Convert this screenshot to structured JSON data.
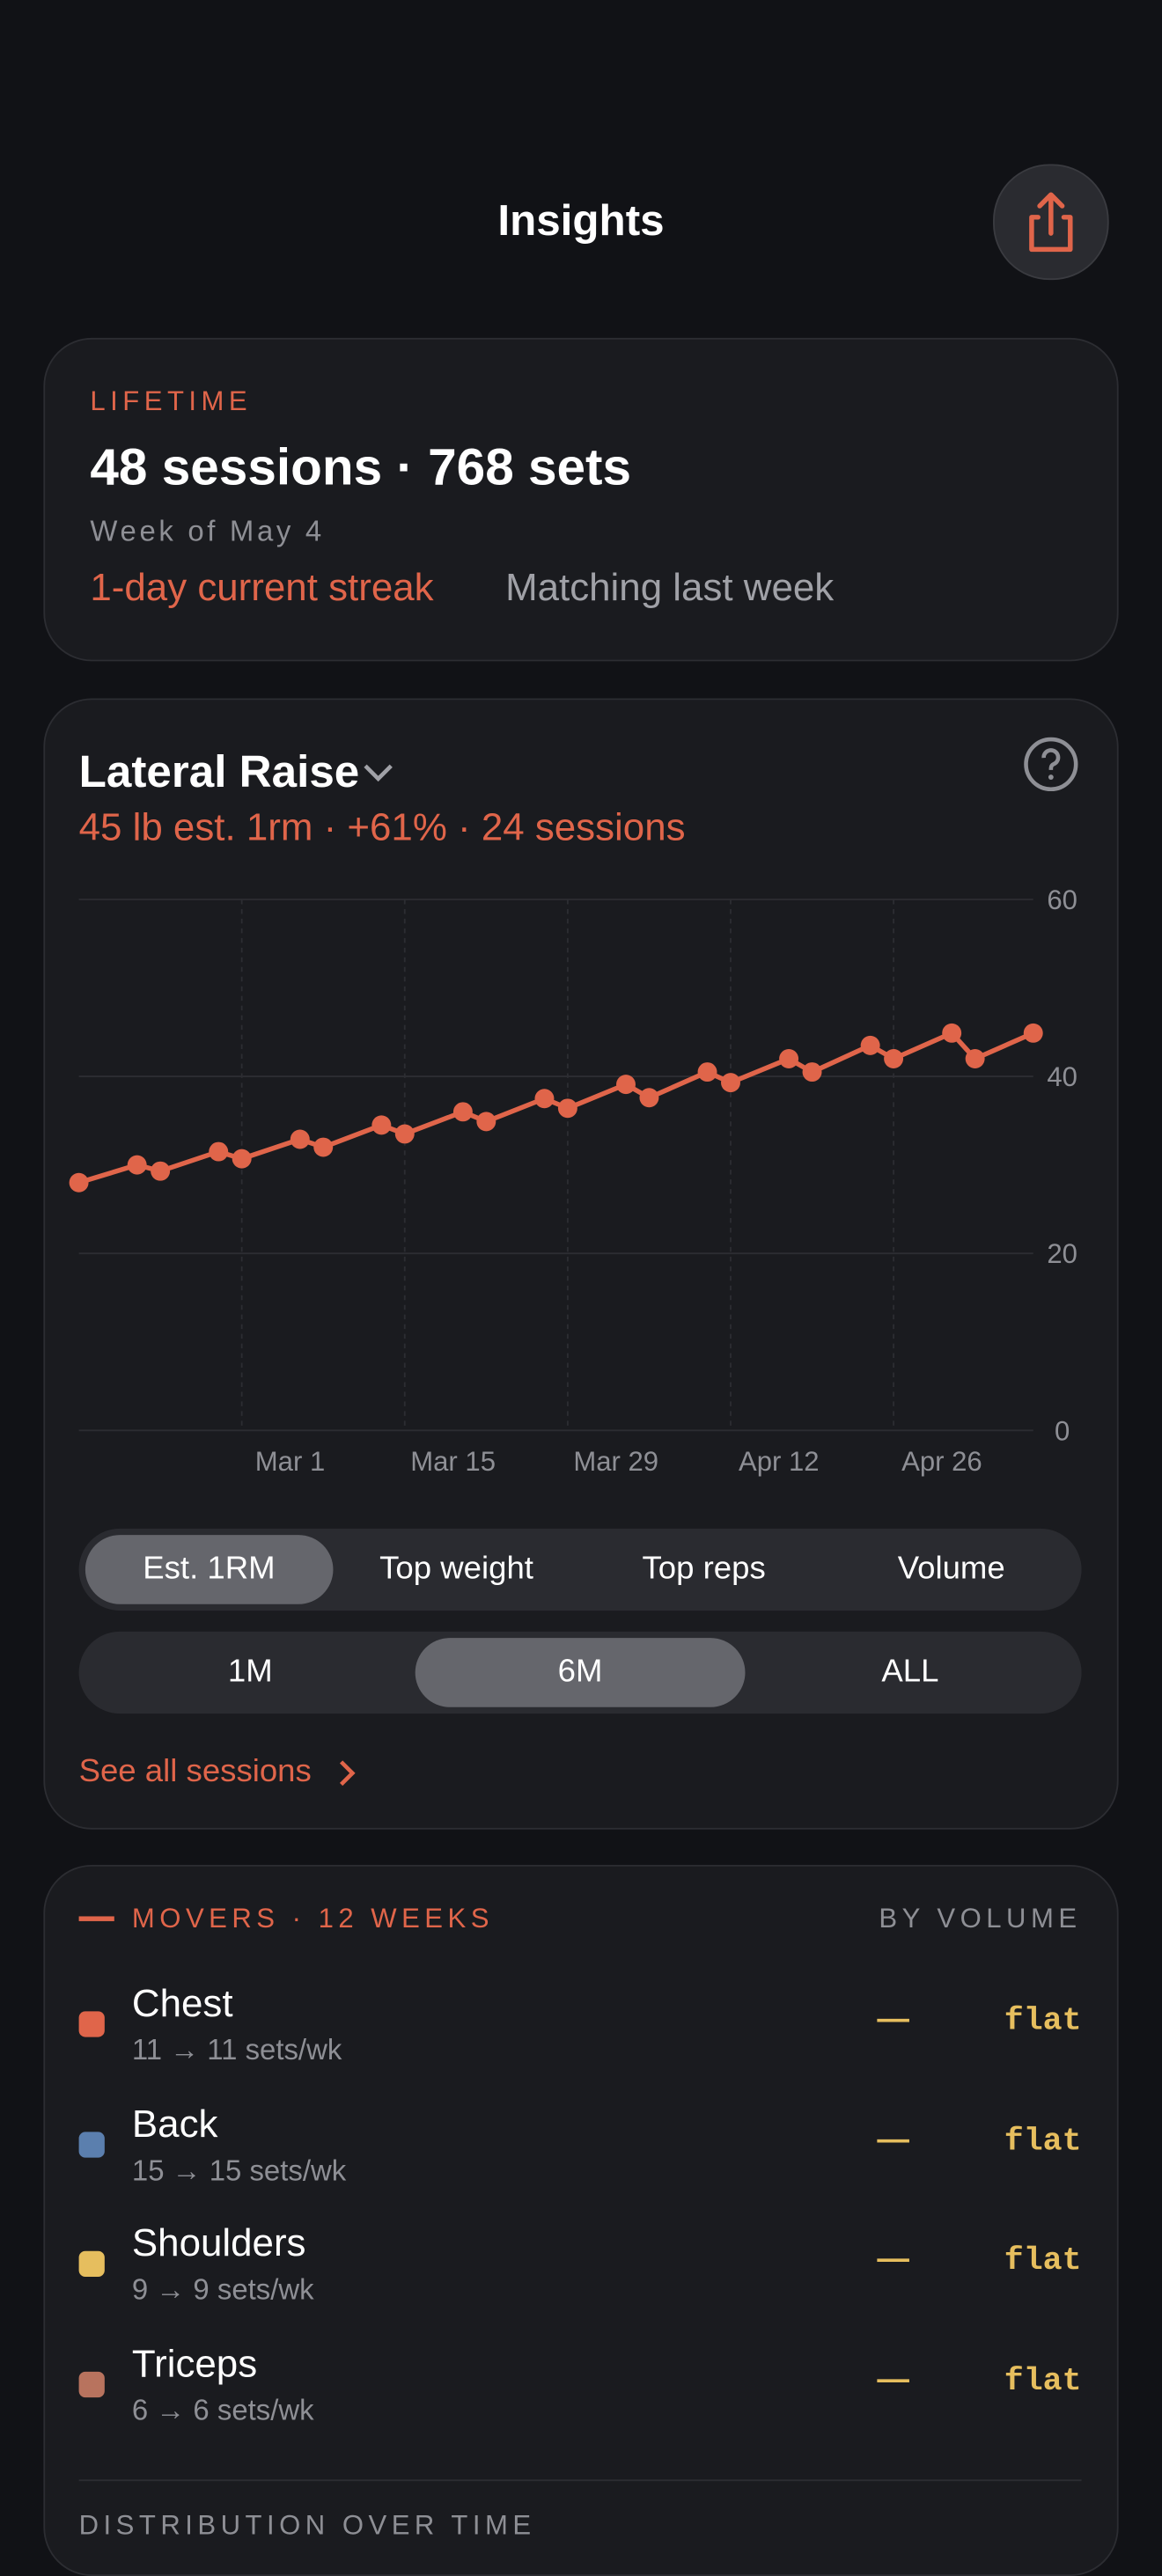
{
  "header": {
    "title": "Insights"
  },
  "lifetime": {
    "label": "LIFETIME",
    "summary": "48 sessions · 768 sets",
    "week": "Week of May 4",
    "streak": "1-day current streak",
    "comparison": "Matching last week"
  },
  "exercise": {
    "name": "Lateral Raise",
    "stats": "45 lb est. 1rm · +61% · 24 sessions"
  },
  "chart_data": {
    "type": "line",
    "color": "#e0654a",
    "grid": true,
    "x": [
      46,
      51,
      53,
      58,
      60,
      65,
      67,
      72,
      74,
      79,
      81,
      86,
      88,
      93,
      95,
      100,
      102,
      107,
      109,
      114,
      116,
      121,
      123,
      128
    ],
    "values": [
      28.0,
      30.0,
      29.3,
      31.5,
      30.7,
      32.9,
      32.0,
      34.5,
      33.5,
      36.0,
      34.9,
      37.5,
      36.4,
      39.1,
      37.6,
      40.5,
      39.3,
      42.0,
      40.5,
      43.5,
      42.0,
      44.9,
      42.0,
      44.9
    ],
    "xlim": [
      46,
      128
    ],
    "xticks": [
      {
        "value": 60,
        "label": "Mar 1"
      },
      {
        "value": 74,
        "label": "Mar 15"
      },
      {
        "value": 88,
        "label": "Mar 29"
      },
      {
        "value": 102,
        "label": "Apr 12"
      },
      {
        "value": 116,
        "label": "Apr 26"
      }
    ],
    "ylim": [
      0,
      60
    ],
    "yticks": [
      0,
      20,
      40,
      60
    ]
  },
  "metric_selector": {
    "options": [
      "Est. 1RM",
      "Top weight",
      "Top reps",
      "Volume"
    ],
    "selected": 0
  },
  "range_selector": {
    "options": [
      "1M",
      "6M",
      "ALL"
    ],
    "selected": 1
  },
  "link": "See all sessions",
  "movers": {
    "title": "MOVERS · 12 WEEKS",
    "sort": "BY VOLUME",
    "rows": [
      {
        "name": "Chest",
        "detail": "11 → 11 sets/wk",
        "color": "#e0654a",
        "trend": "—",
        "status": "flat"
      },
      {
        "name": "Back",
        "detail": "15 → 15 sets/wk",
        "color": "#5b7fae",
        "trend": "—",
        "status": "flat"
      },
      {
        "name": "Shoulders",
        "detail": "9 → 9 sets/wk",
        "color": "#e6be5e",
        "trend": "—",
        "status": "flat"
      },
      {
        "name": "Triceps",
        "detail": "6 → 6 sets/wk",
        "color": "#b8735e",
        "trend": "—",
        "status": "flat"
      }
    ]
  },
  "next_section": "DISTRIBUTION OVER TIME"
}
